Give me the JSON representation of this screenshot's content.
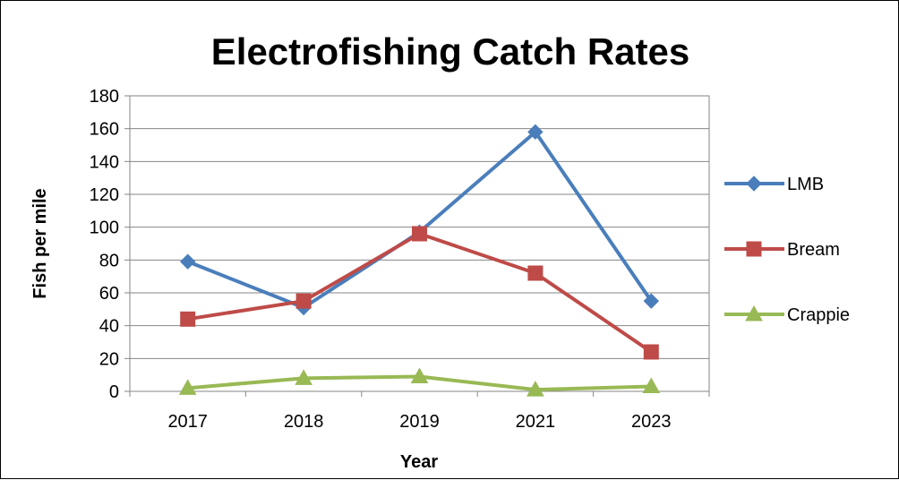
{
  "chart_data": {
    "type": "line",
    "title": "Electrofishing Catch Rates",
    "xlabel": "Year",
    "ylabel": "Fish per mile",
    "categories": [
      "2017",
      "2018",
      "2019",
      "2021",
      "2023"
    ],
    "ylim": [
      0,
      180
    ],
    "yticks": [
      0,
      20,
      40,
      60,
      80,
      100,
      120,
      140,
      160,
      180
    ],
    "grid": "horizontal",
    "legend": "right",
    "series": [
      {
        "name": "LMB",
        "values": [
          79,
          51,
          97,
          158,
          55
        ],
        "color": "#4A7EBB",
        "marker": "diamond"
      },
      {
        "name": "Bream",
        "values": [
          44,
          55,
          96,
          72,
          24
        ],
        "color": "#BE4B48",
        "marker": "square"
      },
      {
        "name": "Crappie",
        "values": [
          2,
          8,
          9,
          1,
          3
        ],
        "color": "#98B954",
        "marker": "triangle"
      }
    ]
  }
}
